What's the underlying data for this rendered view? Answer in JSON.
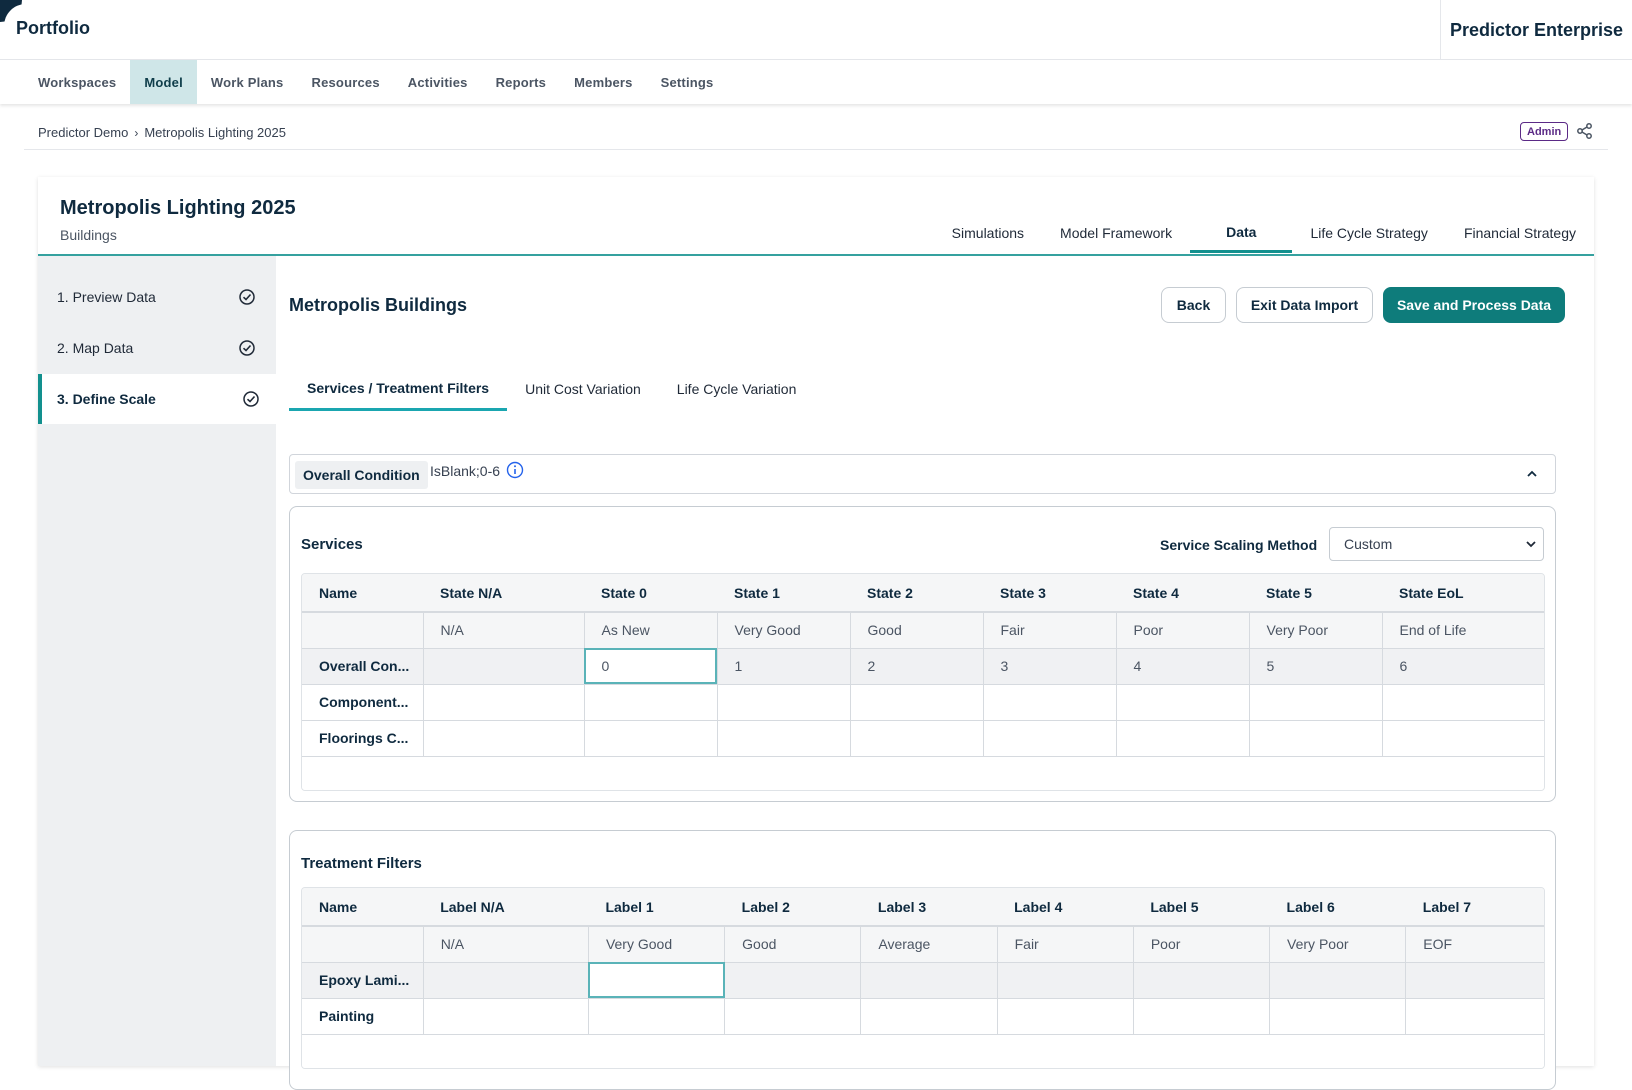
{
  "header": {
    "brand": "Portfolio",
    "product": "Predictor Enterprise"
  },
  "nav": {
    "items": [
      "Workspaces",
      "Model",
      "Work Plans",
      "Resources",
      "Activities",
      "Reports",
      "Members",
      "Settings"
    ],
    "active": "Model"
  },
  "breadcrumb": {
    "items": [
      "Predictor Demo",
      "Metropolis Lighting 2025"
    ],
    "role_badge": "Admin"
  },
  "project": {
    "title": "Metropolis Lighting 2025",
    "subtitle": "Buildings",
    "tabs": [
      "Simulations",
      "Model Framework",
      "Data",
      "Life Cycle Strategy",
      "Financial Strategy"
    ],
    "active_tab": "Data"
  },
  "steps": [
    "1. Preview Data",
    "2. Map Data",
    "3. Define Scale"
  ],
  "content": {
    "title": "Metropolis Buildings",
    "buttons": {
      "back": "Back",
      "exit": "Exit Data Import",
      "save": "Save and Process Data"
    },
    "subtabs": [
      "Services / Treatment Filters",
      "Unit Cost Variation",
      "Life Cycle Variation"
    ],
    "condition": {
      "label": "Overall Condition",
      "value": "IsBlank;0-6"
    }
  },
  "services": {
    "title": "Services",
    "scaling_label": "Service Scaling Method",
    "scaling_value": "Custom",
    "headers": [
      "Name",
      "State N/A",
      "State 0",
      "State 1",
      "State 2",
      "State 3",
      "State 4",
      "State 5",
      "State EoL"
    ],
    "labels": [
      "",
      "N/A",
      "As New",
      "Very Good",
      "Good",
      "Fair",
      "Poor",
      "Very Poor",
      "End of Life"
    ],
    "rows": [
      {
        "name": "Overall Con...",
        "values": [
          "",
          "0",
          "1",
          "2",
          "3",
          "4",
          "5",
          "6"
        ]
      },
      {
        "name": "Component...",
        "values": [
          "",
          "",
          "",
          "",
          "",
          "",
          "",
          ""
        ]
      },
      {
        "name": "Floorings C...",
        "values": [
          "",
          "",
          "",
          "",
          "",
          "",
          "",
          ""
        ]
      }
    ]
  },
  "treatment": {
    "title": "Treatment Filters",
    "headers": [
      "Name",
      "Label N/A",
      "Label 1",
      "Label 2",
      "Label 3",
      "Label 4",
      "Label 5",
      "Label 6",
      "Label 7"
    ],
    "labels": [
      "",
      "N/A",
      "Very Good",
      "Good",
      "Average",
      "Fair",
      "Poor",
      "Very Poor",
      "EOF"
    ],
    "rows": [
      {
        "name": "Epoxy Lami...",
        "values": [
          "",
          "",
          "",
          "",
          "",
          "",
          "",
          ""
        ]
      },
      {
        "name": "Painting",
        "values": [
          "",
          "",
          "",
          "",
          "",
          "",
          "",
          ""
        ]
      }
    ]
  }
}
